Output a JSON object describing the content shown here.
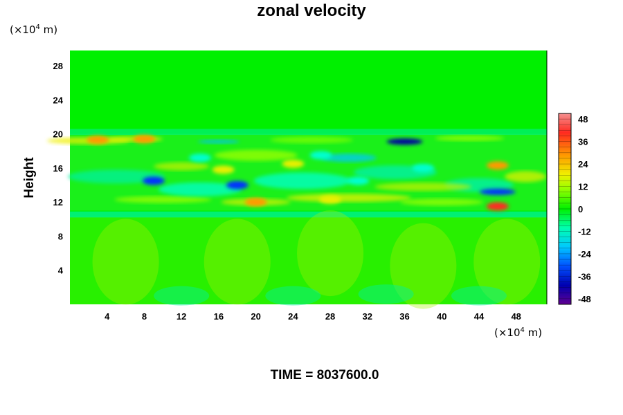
{
  "chart_data": {
    "type": "heatmap",
    "title": "zonal velocity",
    "ylabel": "Height",
    "x_unit": {
      "prefix": "(×10",
      "exp": "4",
      "suffix": " m)"
    },
    "y_unit": {
      "prefix": "(×10",
      "exp": "4",
      "suffix": " m)"
    },
    "xlim": [
      0,
      51.3
    ],
    "ylim": [
      0,
      29.8
    ],
    "xticks": [
      4,
      8,
      12,
      16,
      20,
      24,
      28,
      32,
      36,
      40,
      44,
      48
    ],
    "yticks": [
      4,
      8,
      12,
      16,
      20,
      24,
      28
    ],
    "colorbar": {
      "range": [
        -51,
        51
      ],
      "ticks": [
        48,
        36,
        24,
        12,
        0,
        -12,
        -24,
        -36,
        -48
      ]
    },
    "features": [
      {
        "x": 36,
        "y": 19.1,
        "value": -46
      },
      {
        "x": 46,
        "y": 13.2,
        "value": -40
      },
      {
        "x": 9,
        "y": 14.5,
        "value": -34
      },
      {
        "x": 18,
        "y": 14,
        "value": -32
      },
      {
        "x": 46,
        "y": 16.3,
        "value": 30
      },
      {
        "x": 46,
        "y": 11.5,
        "value": 32
      },
      {
        "x": 3,
        "y": 19.3,
        "value": 20
      },
      {
        "x": 8,
        "y": 19.4,
        "value": 22
      },
      {
        "x": 20,
        "y": 12,
        "value": 24
      },
      {
        "x": 28,
        "y": 12.3,
        "value": 16
      },
      {
        "x": 16.5,
        "y": 15.8,
        "value": 18
      },
      {
        "x": 24,
        "y": 16.5,
        "value": 14
      },
      {
        "x": 27,
        "y": 17.5,
        "value": -16
      },
      {
        "x": 31,
        "y": 14.5,
        "value": -14
      },
      {
        "x": 38,
        "y": 16,
        "value": -12
      },
      {
        "x": 14,
        "y": 17.2,
        "value": -12
      }
    ]
  },
  "time_label": "TIME = 8037600.0"
}
